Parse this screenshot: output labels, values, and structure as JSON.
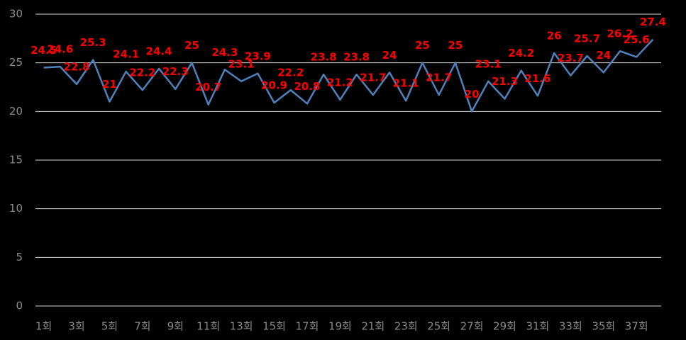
{
  "chart_data": {
    "type": "line",
    "categories": [
      "1회",
      null,
      "3회",
      null,
      "5회",
      null,
      "7회",
      null,
      "9회",
      null,
      "11회",
      null,
      "13회",
      null,
      "15회",
      null,
      "17회",
      null,
      "19회",
      null,
      "21회",
      null,
      "23회",
      null,
      "25회",
      null,
      "27회",
      null,
      "29회",
      null,
      "31회",
      null,
      "33회",
      null,
      "35회",
      null,
      "37회",
      null
    ],
    "series": [
      {
        "color": "#4f81bd",
        "values": [
          24.5,
          24.6,
          22.8,
          25.3,
          21,
          24.1,
          22.2,
          24.4,
          22.3,
          25,
          20.7,
          24.3,
          23.1,
          23.9,
          20.9,
          22.2,
          20.8,
          23.8,
          21.2,
          23.8,
          21.7,
          24,
          21.1,
          25,
          21.7,
          25,
          20,
          23.1,
          21.3,
          24.2,
          21.6,
          26,
          23.7,
          25.7,
          24,
          26.2,
          25.6,
          27.4
        ]
      }
    ],
    "ylim": [
      0,
      30
    ],
    "yticks": [
      0,
      5,
      10,
      15,
      20,
      25,
      30
    ],
    "grid": true
  }
}
